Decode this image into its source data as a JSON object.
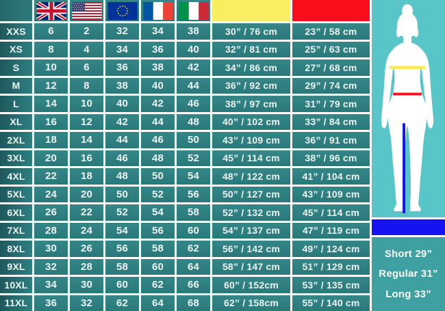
{
  "colors": {
    "cell_teal": "#2F8182",
    "label_teal_dark": "#1E585C",
    "grid_white": "#FFFFFF",
    "chest_header_yellow": "#F8EE5F",
    "waist_header_red": "#FA0E1C",
    "figure_bg": "#58C5C8",
    "silhouette_white": "#FFFFFF",
    "chest_line_yellow": "#F8E94E",
    "waist_line_red": "#F3121F",
    "inseam_line_blue": "#1A13EB",
    "leg_bar_blue": "#1712F1",
    "leg_panel_teal": "#3FA0A1"
  },
  "header": {
    "flag_icons": [
      "uk-flag",
      "us-flag",
      "eu-flag",
      "france-flag",
      "italy-flag"
    ],
    "chest_swatch": "yellow",
    "waist_swatch": "red"
  },
  "chart_data": {
    "type": "table",
    "columns": [
      "size",
      "uk",
      "us",
      "eu",
      "france",
      "italy",
      "chest",
      "waist"
    ],
    "rows": [
      {
        "size": "XXS",
        "uk": "6",
        "us": "2",
        "eu": "32",
        "france": "34",
        "italy": "38",
        "chest": "30” / 76 cm",
        "waist": "23” / 58 cm"
      },
      {
        "size": "XS",
        "uk": "8",
        "us": "4",
        "eu": "34",
        "france": "36",
        "italy": "40",
        "chest": "32” / 81 cm",
        "waist": "25” / 63 cm"
      },
      {
        "size": "S",
        "uk": "10",
        "us": "6",
        "eu": "36",
        "france": "38",
        "italy": "42",
        "chest": "34” / 86 cm",
        "waist": "27” / 68 cm"
      },
      {
        "size": "M",
        "uk": "12",
        "us": "8",
        "eu": "38",
        "france": "40",
        "italy": "44",
        "chest": "36” / 92 cm",
        "waist": "29” / 74 cm"
      },
      {
        "size": "L",
        "uk": "14",
        "us": "10",
        "eu": "40",
        "france": "42",
        "italy": "46",
        "chest": "38” / 97 cm",
        "waist": "31” / 79 cm"
      },
      {
        "size": "XL",
        "uk": "16",
        "us": "12",
        "eu": "42",
        "france": "44",
        "italy": "48",
        "chest": "40” / 102 cm",
        "waist": "33” / 84 cm"
      },
      {
        "size": "2XL",
        "uk": "18",
        "us": "14",
        "eu": "44",
        "france": "46",
        "italy": "50",
        "chest": "43” / 109 cm",
        "waist": "36” / 91 cm"
      },
      {
        "size": "3XL",
        "uk": "20",
        "us": "16",
        "eu": "46",
        "france": "48",
        "italy": "52",
        "chest": "45” / 114 cm",
        "waist": "38” / 96 cm"
      },
      {
        "size": "4XL",
        "uk": "22",
        "us": "18",
        "eu": "48",
        "france": "50",
        "italy": "54",
        "chest": "48” / 122 cm",
        "waist": "41” / 104 cm"
      },
      {
        "size": "5XL",
        "uk": "24",
        "us": "20",
        "eu": "50",
        "france": "52",
        "italy": "56",
        "chest": "50” / 127 cm",
        "waist": "43” / 109 cm"
      },
      {
        "size": "6XL",
        "uk": "26",
        "us": "22",
        "eu": "52",
        "france": "54",
        "italy": "58",
        "chest": "52” / 132 cm",
        "waist": "45” / 114 cm"
      },
      {
        "size": "7XL",
        "uk": "28",
        "us": "24",
        "eu": "54",
        "france": "56",
        "italy": "60",
        "chest": "54” / 137 cm",
        "waist": "47” / 119 cm"
      },
      {
        "size": "8XL",
        "uk": "30",
        "us": "26",
        "eu": "56",
        "france": "58",
        "italy": "62",
        "chest": "56” / 142 cm",
        "waist": "49” / 124 cm"
      },
      {
        "size": "9XL",
        "uk": "32",
        "us": "28",
        "eu": "58",
        "france": "60",
        "italy": "64",
        "chest": "58” / 147 cm",
        "waist": "51” / 129 cm"
      },
      {
        "size": "10XL",
        "uk": "34",
        "us": "30",
        "eu": "60",
        "france": "62",
        "italy": "66",
        "chest": "60” / 152cm",
        "waist": "53” / 135 cm"
      },
      {
        "size": "11XL",
        "uk": "36",
        "us": "32",
        "eu": "62",
        "france": "64",
        "italy": "68",
        "chest": "62” / 158cm",
        "waist": "55” / 140 cm"
      }
    ]
  },
  "leg_length_panel": {
    "lines": [
      "Short 29”",
      "Regular 31”",
      "Long 33”"
    ]
  }
}
